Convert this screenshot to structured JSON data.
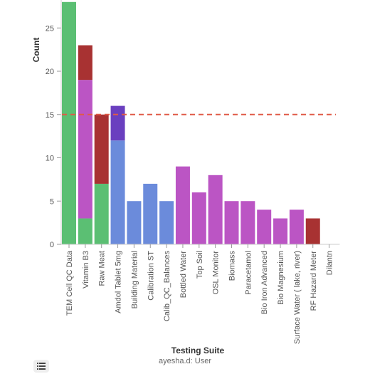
{
  "chart_data": {
    "type": "bar",
    "stacked": true,
    "xlabel": "Testing Suite",
    "ylabel": "Count",
    "ylim": [
      0,
      28
    ],
    "yticks": [
      0,
      5,
      10,
      15,
      20,
      25
    ],
    "grid": false,
    "reference_line": {
      "value": 15,
      "color": "#e05a47",
      "style": "dashed"
    },
    "categories": [
      "TEM Cell QC Data",
      "Vitamin B3",
      "Raw Meat",
      "Amdol Tablet 5mg",
      "Building Material",
      "Calibration ST",
      "Calib_QC_Balances",
      "Bottled Water",
      "Top Soil",
      "OSL Monitor",
      "Biomass",
      "Paracetamol",
      "Bio Iron Advanced",
      "Bio Magnesium",
      "Surface Water ( lake, river)",
      "RF Hazard Meter",
      "Dilantn"
    ],
    "stacks": [
      [
        {
          "value": 28,
          "color": "#5bbf73"
        }
      ],
      [
        {
          "value": 3,
          "color": "#5bbf73"
        },
        {
          "value": 16,
          "color": "#bb55c4"
        },
        {
          "value": 4,
          "color": "#a83232"
        }
      ],
      [
        {
          "value": 7,
          "color": "#5bbf73"
        },
        {
          "value": 8,
          "color": "#a83232"
        }
      ],
      [
        {
          "value": 12,
          "color": "#6b8bdb"
        },
        {
          "value": 4,
          "color": "#6a3fbf"
        }
      ],
      [
        {
          "value": 5,
          "color": "#6b8bdb"
        }
      ],
      [
        {
          "value": 7,
          "color": "#6b8bdb"
        }
      ],
      [
        {
          "value": 5,
          "color": "#6b8bdb"
        }
      ],
      [
        {
          "value": 9,
          "color": "#bb55c4"
        }
      ],
      [
        {
          "value": 6,
          "color": "#bb55c4"
        }
      ],
      [
        {
          "value": 8,
          "color": "#bb55c4"
        }
      ],
      [
        {
          "value": 5,
          "color": "#bb55c4"
        }
      ],
      [
        {
          "value": 5,
          "color": "#bb55c4"
        }
      ],
      [
        {
          "value": 4,
          "color": "#bb55c4"
        }
      ],
      [
        {
          "value": 3,
          "color": "#bb55c4"
        }
      ],
      [
        {
          "value": 4,
          "color": "#bb55c4"
        }
      ],
      [
        {
          "value": 3,
          "color": "#a83232"
        }
      ],
      []
    ]
  },
  "footer": {
    "user": "ayesha.d: User"
  },
  "toolbar": {
    "list_icon": "list-icon"
  }
}
